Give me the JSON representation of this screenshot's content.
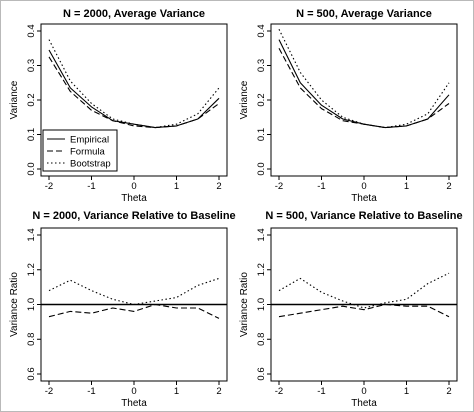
{
  "chart_data": [
    {
      "type": "line",
      "title": "N = 2000, Average Variance",
      "xlabel": "Theta",
      "ylabel": "Variance",
      "xlim": [
        -2,
        2
      ],
      "ylim": [
        0,
        0.4
      ],
      "xticks": [
        "-2",
        "-1",
        "0",
        "1",
        "2"
      ],
      "yticks": [
        "0.0",
        "0.1",
        "0.2",
        "0.3",
        "0.4"
      ],
      "x": [
        -2,
        -1.5,
        -1,
        -0.5,
        0,
        0.5,
        1,
        1.5,
        2
      ],
      "series": [
        {
          "name": "Empirical",
          "style": "solid",
          "values": [
            0.345,
            0.235,
            0.18,
            0.14,
            0.13,
            0.12,
            0.125,
            0.145,
            0.205
          ]
        },
        {
          "name": "Formula",
          "style": "dashed",
          "values": [
            0.325,
            0.225,
            0.17,
            0.14,
            0.125,
            0.12,
            0.125,
            0.145,
            0.19
          ]
        },
        {
          "name": "Bootstrap",
          "style": "dotted",
          "values": [
            0.375,
            0.255,
            0.19,
            0.145,
            0.13,
            0.12,
            0.13,
            0.16,
            0.235
          ]
        }
      ],
      "legend": {
        "placement": "bottom-left",
        "entries": [
          "Empirical",
          "Formula",
          "Bootstrap"
        ]
      }
    },
    {
      "type": "line",
      "title": "N = 500, Average Variance",
      "xlabel": "Theta",
      "ylabel": "Variance",
      "xlim": [
        -2,
        2
      ],
      "ylim": [
        0,
        0.4
      ],
      "xticks": [
        "-2",
        "-1",
        "0",
        "1",
        "2"
      ],
      "yticks": [
        "0.0",
        "0.1",
        "0.2",
        "0.3",
        "0.4"
      ],
      "x": [
        -2,
        -1.5,
        -1,
        -0.5,
        0,
        0.5,
        1,
        1.5,
        2
      ],
      "series": [
        {
          "name": "Empirical",
          "style": "solid",
          "values": [
            0.375,
            0.25,
            0.185,
            0.145,
            0.13,
            0.12,
            0.125,
            0.145,
            0.215
          ]
        },
        {
          "name": "Formula",
          "style": "dashed",
          "values": [
            0.35,
            0.235,
            0.175,
            0.14,
            0.13,
            0.12,
            0.125,
            0.145,
            0.19
          ]
        },
        {
          "name": "Bootstrap",
          "style": "dotted",
          "values": [
            0.405,
            0.28,
            0.2,
            0.15,
            0.13,
            0.12,
            0.13,
            0.16,
            0.25
          ]
        }
      ]
    },
    {
      "type": "line",
      "title": "N = 2000, Variance Relative to Baseline",
      "xlabel": "Theta",
      "ylabel": "Variance Ratio",
      "xlim": [
        -2,
        2
      ],
      "ylim": [
        0.6,
        1.4
      ],
      "xticks": [
        "-2",
        "-1",
        "0",
        "1",
        "2"
      ],
      "yticks": [
        "0.6",
        "0.8",
        "1.0",
        "1.2",
        "1.4"
      ],
      "x": [
        -2,
        -1.5,
        -1,
        -0.5,
        0,
        0.5,
        1,
        1.5,
        2
      ],
      "baseline": 1.0,
      "series": [
        {
          "name": "Formula",
          "style": "dashed",
          "values": [
            0.93,
            0.96,
            0.95,
            0.98,
            0.96,
            1.0,
            0.98,
            0.98,
            0.92
          ]
        },
        {
          "name": "Bootstrap",
          "style": "dotted",
          "values": [
            1.08,
            1.14,
            1.08,
            1.03,
            1.0,
            1.02,
            1.04,
            1.11,
            1.15
          ]
        }
      ]
    },
    {
      "type": "line",
      "title": "N = 500, Variance Relative to Baseline",
      "xlabel": "Theta",
      "ylabel": "Variance Ratio",
      "xlim": [
        -2,
        2
      ],
      "ylim": [
        0.6,
        1.4
      ],
      "xticks": [
        "-2",
        "-1",
        "0",
        "1",
        "2"
      ],
      "yticks": [
        "0.6",
        "0.8",
        "1.0",
        "1.2",
        "1.4"
      ],
      "x": [
        -2,
        -1.5,
        -1,
        -0.5,
        0,
        0.5,
        1,
        1.5,
        2
      ],
      "baseline": 1.0,
      "series": [
        {
          "name": "Formula",
          "style": "dashed",
          "values": [
            0.93,
            0.95,
            0.97,
            0.99,
            0.97,
            1.0,
            0.99,
            0.99,
            0.93
          ]
        },
        {
          "name": "Bootstrap",
          "style": "dotted",
          "values": [
            1.08,
            1.15,
            1.07,
            1.02,
            0.98,
            1.01,
            1.03,
            1.12,
            1.18
          ]
        }
      ]
    }
  ]
}
